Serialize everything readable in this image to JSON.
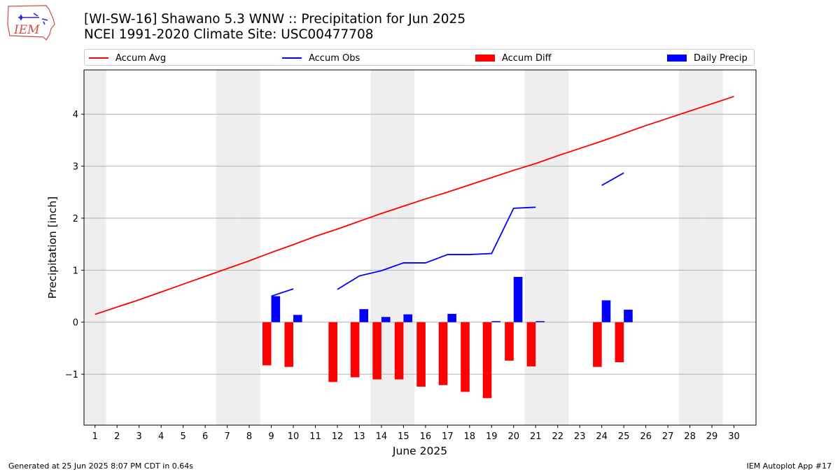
{
  "header": {
    "title_line1": "[WI-SW-16] Shawano 5.3 WNW :: Precipitation for Jun 2025",
    "title_line2": "NCEI 1991-2020 Climate Site: USC00477708",
    "logo_text": "IEM"
  },
  "footer": {
    "left": "Generated at 25 Jun 2025 8:07 PM CDT in 0.64s",
    "right": "IEM Autoplot App #17"
  },
  "colors": {
    "accum_avg": "#ff0000",
    "accum_obs": "#0000ff",
    "accum_diff": "#ff0000",
    "daily_precip": "#0000ff",
    "weekend_shade": "#eeeeee",
    "grid": "#b0b0b0"
  },
  "chart_data": {
    "type": "bar",
    "xlabel": "June 2025",
    "ylabel": "Precipitation [inch]",
    "xlim": [
      0.5,
      31
    ],
    "ylim": [
      -1.98,
      4.85
    ],
    "x_ticks": [
      1,
      2,
      3,
      4,
      5,
      6,
      7,
      8,
      9,
      10,
      11,
      12,
      13,
      14,
      15,
      16,
      17,
      18,
      19,
      20,
      21,
      22,
      23,
      24,
      25,
      26,
      27,
      28,
      29,
      30
    ],
    "y_ticks": [
      -1,
      0,
      1,
      2,
      3,
      4
    ],
    "y_tick_labels": [
      "−1",
      "0",
      "1",
      "2",
      "3",
      "4"
    ],
    "grid": "horizontal",
    "legend_position": "top",
    "weekend_days": [
      1,
      7,
      8,
      14,
      15,
      21,
      22,
      28,
      29
    ],
    "series": [
      {
        "name": "Accum Avg",
        "type": "line",
        "x": [
          1,
          2,
          3,
          4,
          5,
          6,
          7,
          8,
          9,
          10,
          11,
          12,
          13,
          14,
          15,
          16,
          17,
          18,
          19,
          20,
          21,
          22,
          23,
          24,
          25,
          26,
          27,
          28,
          29,
          30
        ],
        "values": [
          0.15,
          0.29,
          0.43,
          0.58,
          0.73,
          0.88,
          1.03,
          1.18,
          1.34,
          1.49,
          1.65,
          1.79,
          1.94,
          2.09,
          2.23,
          2.37,
          2.5,
          2.64,
          2.78,
          2.92,
          3.05,
          3.2,
          3.34,
          3.48,
          3.63,
          3.78,
          3.92,
          4.06,
          4.2,
          4.34
        ]
      },
      {
        "name": "Accum Obs",
        "type": "line",
        "x": [
          9,
          10,
          11,
          12,
          13,
          14,
          15,
          16,
          17,
          18,
          19,
          20,
          21,
          22,
          23,
          24,
          25
        ],
        "values": [
          0.5,
          0.64,
          null,
          0.63,
          0.89,
          0.99,
          1.14,
          1.14,
          1.3,
          1.3,
          1.32,
          2.19,
          2.21,
          null,
          null,
          2.63,
          2.87
        ]
      },
      {
        "name": "Accum Diff",
        "type": "bar",
        "x": [
          9,
          10,
          12,
          13,
          14,
          15,
          16,
          17,
          18,
          19,
          20,
          21,
          24,
          25
        ],
        "values": [
          -0.83,
          -0.86,
          -1.15,
          -1.06,
          -1.1,
          -1.1,
          -1.24,
          -1.21,
          -1.34,
          -1.46,
          -0.74,
          -0.85,
          -0.86,
          -0.77
        ]
      },
      {
        "name": "Daily Precip",
        "type": "bar",
        "x": [
          9,
          10,
          13,
          14,
          15,
          17,
          19,
          20,
          21,
          24,
          25
        ],
        "values": [
          0.5,
          0.14,
          0.25,
          0.1,
          0.15,
          0.16,
          0.02,
          0.87,
          0.02,
          0.42,
          0.24
        ]
      }
    ]
  }
}
